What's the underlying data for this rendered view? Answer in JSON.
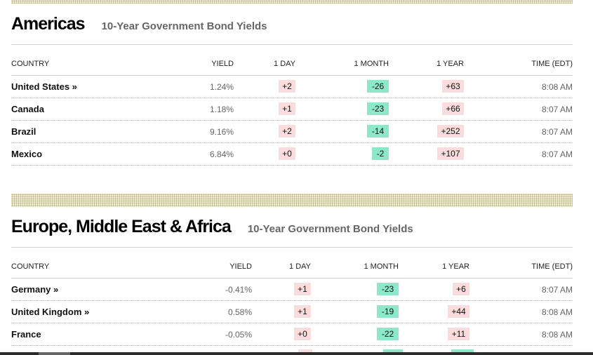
{
  "americas": {
    "title": "Americas",
    "subtitle": "10-Year Government Bond Yields",
    "headers": {
      "country": "COUNTRY",
      "yield": "YIELD",
      "day": "1 DAY",
      "month": "1 MONTH",
      "year": "1 YEAR",
      "time": "TIME (EDT)"
    },
    "rows": [
      {
        "country": "United States »",
        "yield": "1.24%",
        "day": "+2",
        "month": "-26",
        "year": "+63",
        "time": "8:08 AM"
      },
      {
        "country": "Canada",
        "yield": "1.18%",
        "day": "+1",
        "month": "-23",
        "year": "+66",
        "time": "8:07 AM"
      },
      {
        "country": "Brazil",
        "yield": "9.16%",
        "day": "+2",
        "month": "-14",
        "year": "+252",
        "time": "8:07 AM"
      },
      {
        "country": "Mexico",
        "yield": "6.84%",
        "day": "+0",
        "month": "-2",
        "year": "+107",
        "time": "8:07 AM"
      }
    ]
  },
  "emea": {
    "title": "Europe, Middle East & Africa",
    "subtitle": "10-Year Government Bond Yields",
    "headers": {
      "country": "COUNTRY",
      "yield": "YIELD",
      "day": "1 DAY",
      "month": "1 MONTH",
      "year": "1 YEAR",
      "time": "TIME (EDT)"
    },
    "rows": [
      {
        "country": "Germany »",
        "yield": "-0.41%",
        "day": "+1",
        "month": "-23",
        "year": "+6",
        "time": "8:07 AM"
      },
      {
        "country": "United Kingdom »",
        "yield": "0.58%",
        "day": "+1",
        "month": "-19",
        "year": "+44",
        "time": "8:08 AM"
      },
      {
        "country": "France",
        "yield": "-0.05%",
        "day": "+0",
        "month": "-22",
        "year": "+11",
        "time": "8:08 AM"
      }
    ]
  },
  "colors": {
    "positive_bg": "#fbdcdc",
    "negative_bg": "#8ce8c9",
    "pattern": "#f3f0d8"
  }
}
